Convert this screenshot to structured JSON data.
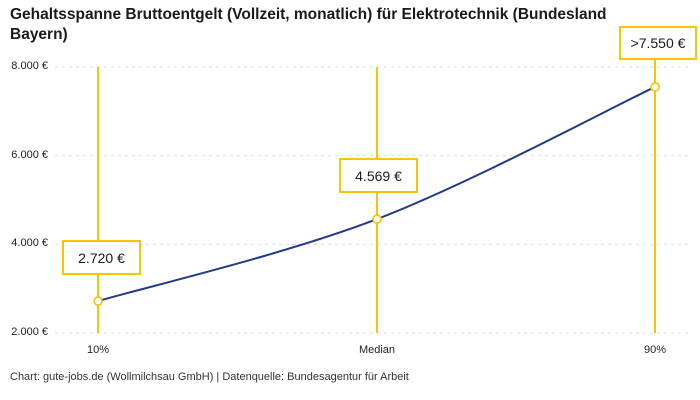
{
  "title": "Gehaltsspanne Bruttoentgelt (Vollzeit, monatlich) für Elektrotechnik (Bundesland Bayern)",
  "footer": "Chart: gute-jobs.de (Wollmilchsau GmbH) | Datenquelle: Bundesagentur für Arbeit",
  "chart_data": {
    "type": "line",
    "title": "Gehaltsspanne Bruttoentgelt (Vollzeit, monatlich) für Elektrotechnik (Bundesland Bayern)",
    "categories": [
      "10%",
      "Median",
      "90%"
    ],
    "values": [
      2720,
      4569,
      7550
    ],
    "data_labels": [
      "2.720 €",
      "4.569 €",
      ">7.550 €"
    ],
    "ytick_labels": [
      "8.000 €",
      "6.000 €",
      "4.000 €",
      "2.000 €"
    ],
    "ylim": [
      2000,
      8000
    ],
    "grid": true,
    "legend": false,
    "colors": {
      "line": "#1e3a8a",
      "accent": "#fdc300",
      "grid": "#dcdcdc",
      "marker_fill": "#ffffff"
    }
  }
}
